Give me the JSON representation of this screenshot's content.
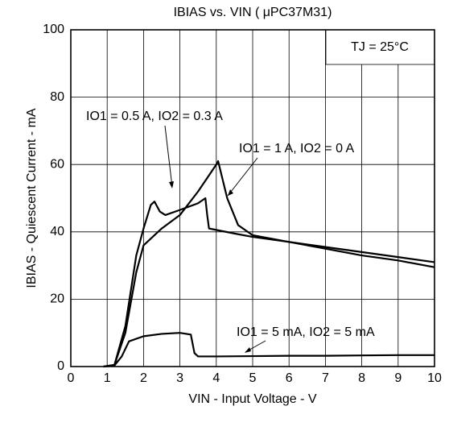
{
  "chart_data": {
    "type": "line",
    "title": "IBIAS vs. VIN ( μPC37M31)",
    "x_label": "VIN - Input Voltage - V",
    "y_label": "IBIAS - Quiescent Current - mA",
    "annotation": "TJ = 25°C",
    "xlim": [
      0,
      10
    ],
    "xticks": [
      0,
      1,
      2,
      3,
      4,
      5,
      6,
      7,
      8,
      9,
      10
    ],
    "ylim": [
      0,
      100
    ],
    "yticks": [
      0,
      20,
      40,
      60,
      80,
      100
    ],
    "grid": true,
    "series": [
      {
        "name": "IO1 = 0.5 A, IO2 = 0.3 A",
        "color": "#000000",
        "x": [
          0.9,
          1.2,
          1.5,
          1.8,
          2.0,
          2.2,
          2.3,
          2.45,
          2.6,
          3.0,
          3.5,
          3.7,
          3.75,
          3.8,
          4.5,
          5,
          6,
          7,
          8,
          9,
          10
        ],
        "values": [
          0,
          0.5,
          12,
          33,
          41,
          48,
          49,
          46,
          45,
          46.5,
          48.5,
          50,
          45,
          41,
          39.5,
          38.5,
          37,
          35.5,
          34,
          32.5,
          31
        ]
      },
      {
        "name": "IO1 = 1 A, IO2 = 0 A",
        "color": "#000000",
        "x": [
          0.9,
          1.2,
          1.5,
          1.8,
          2.0,
          2.5,
          3.0,
          3.5,
          4.0,
          4.05,
          4.3,
          4.6,
          5,
          6,
          7,
          8,
          9,
          10
        ],
        "values": [
          0,
          0.5,
          10,
          28,
          36,
          41,
          45,
          52,
          60,
          61,
          50,
          42,
          39,
          37,
          35,
          33,
          31.5,
          29.5
        ]
      },
      {
        "name": "IO1 = 5 mA, IO2 = 5 mA",
        "color": "#000000",
        "x": [
          0.9,
          1.2,
          1.4,
          1.6,
          2.0,
          2.5,
          3.0,
          3.3,
          3.4,
          3.5,
          4,
          5,
          6,
          7,
          8,
          9,
          10
        ],
        "values": [
          0,
          0.3,
          3,
          7.5,
          9,
          9.7,
          10,
          9.5,
          4,
          3,
          3,
          3.1,
          3.2,
          3.2,
          3.3,
          3.4,
          3.4
        ]
      }
    ]
  }
}
